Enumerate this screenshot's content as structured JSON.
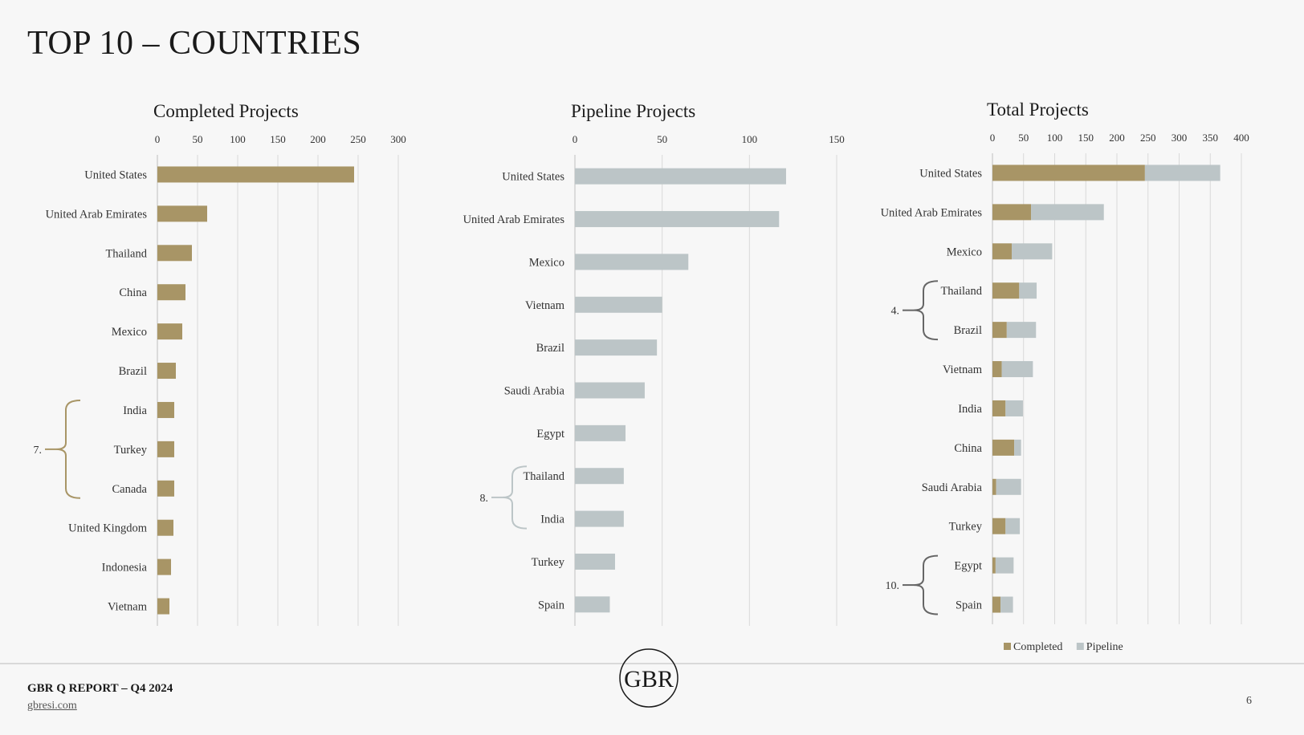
{
  "page": {
    "title": "TOP 10 – COUNTRIES",
    "footer_title": "GBR Q REPORT – Q4 2024",
    "footer_url": "gbresi.com",
    "page_number": "6",
    "logo_text": "GBR"
  },
  "colors": {
    "completed": "#a89566",
    "pipeline": "#bcc5c7",
    "grid": "#d9d9d9",
    "bracket_completed": "#a89566",
    "bracket_pipeline": "#bcc5c7",
    "bracket_total": "#666666"
  },
  "chart_data": [
    {
      "type": "bar",
      "title": "Completed Projects",
      "xlim": [
        0,
        300
      ],
      "ticks": [
        0,
        50,
        100,
        150,
        200,
        250,
        300
      ],
      "grid": true,
      "categories": [
        "United States",
        "United Arab Emirates",
        "Thailand",
        "China",
        "Mexico",
        "Brazil",
        "India",
        "Turkey",
        "Canada",
        "United Kingdom",
        "Indonesia",
        "Vietnam"
      ],
      "series": [
        {
          "values": [
            245,
            62,
            43,
            35,
            31,
            23,
            21,
            21,
            21,
            20,
            17,
            15
          ]
        }
      ],
      "annotations": [
        {
          "label": "7.",
          "from": 6,
          "to": 8
        }
      ]
    },
    {
      "type": "bar",
      "title": "Pipeline Projects",
      "xlim": [
        0,
        150
      ],
      "ticks": [
        0,
        50,
        100,
        150
      ],
      "grid": true,
      "categories": [
        "United States",
        "United Arab Emirates",
        "Mexico",
        "Vietnam",
        "Brazil",
        "Saudi Arabia",
        "Egypt",
        "Thailand",
        "India",
        "Turkey",
        "Spain"
      ],
      "series": [
        {
          "values": [
            121,
            117,
            65,
            50,
            47,
            40,
            29,
            28,
            28,
            23,
            20
          ]
        }
      ],
      "annotations": [
        {
          "label": "8.",
          "from": 7,
          "to": 8
        }
      ]
    },
    {
      "type": "bar",
      "stacked": true,
      "title": "Total Projects",
      "xlim": [
        0,
        400
      ],
      "ticks": [
        0,
        50,
        100,
        150,
        200,
        250,
        300,
        350,
        400
      ],
      "grid": true,
      "legend": "bottom",
      "categories": [
        "United States",
        "United Arab Emirates",
        "Mexico",
        "Thailand",
        "Brazil",
        "Vietnam",
        "India",
        "China",
        "Saudi Arabia",
        "Turkey",
        "Egypt",
        "Spain"
      ],
      "series": [
        {
          "name": "Completed",
          "values": [
            245,
            62,
            31,
            43,
            23,
            15,
            21,
            35,
            6,
            21,
            5,
            13
          ]
        },
        {
          "name": "Pipeline",
          "values": [
            121,
            117,
            65,
            28,
            47,
            50,
            28,
            11,
            40,
            23,
            29,
            20
          ]
        }
      ],
      "annotations": [
        {
          "label": "4.",
          "from": 3,
          "to": 4
        },
        {
          "label": "10.",
          "from": 10,
          "to": 11
        }
      ]
    }
  ]
}
